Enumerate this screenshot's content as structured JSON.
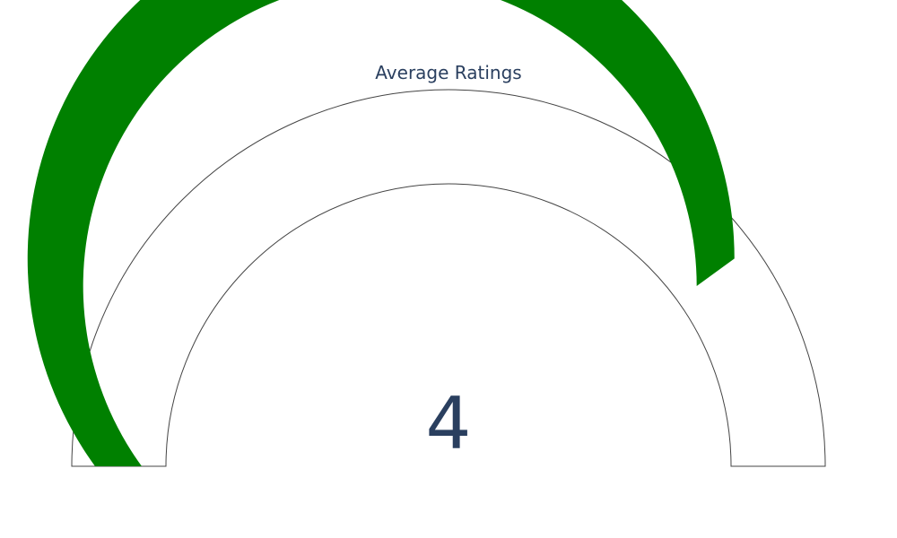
{
  "chart_data": {
    "type": "gauge",
    "title": "Average Ratings",
    "value": 4,
    "value_label": "4",
    "range": [
      0,
      5
    ],
    "bar_color": "#008000",
    "background_color": "#ffffff",
    "border_color": "#444444"
  }
}
